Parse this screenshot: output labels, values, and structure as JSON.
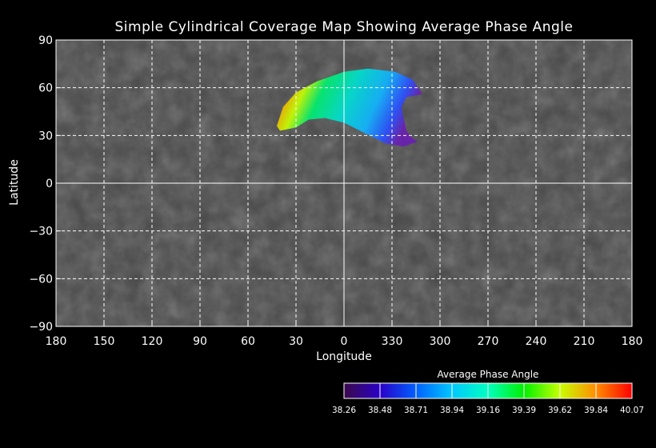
{
  "chart_data": {
    "type": "heatmap",
    "title": "Simple Cylindrical Coverage Map Showing Average Phase Angle",
    "xlabel": "Longitude",
    "ylabel": "Latitude",
    "x_tick_labels": [
      "180",
      "150",
      "120",
      "90",
      "60",
      "30",
      "0",
      "330",
      "300",
      "270",
      "240",
      "210",
      "180"
    ],
    "y_tick_labels": [
      "90",
      "60",
      "30",
      "0",
      "−30",
      "−60",
      "−90"
    ],
    "x_range_east_longitude": [
      180,
      540
    ],
    "y_range_latitude": [
      -90,
      90
    ],
    "grid": true,
    "coverage_polygon_east_longitude_latitude": [
      [
        318,
        36
      ],
      [
        322,
        48
      ],
      [
        330,
        57
      ],
      [
        343,
        64
      ],
      [
        360,
        70
      ],
      [
        375,
        72
      ],
      [
        392,
        70
      ],
      [
        403,
        65
      ],
      [
        409,
        56
      ],
      [
        399,
        54
      ],
      [
        396,
        48
      ],
      [
        397,
        42
      ],
      [
        398,
        38
      ],
      [
        399,
        33
      ],
      [
        402,
        29
      ],
      [
        406,
        26
      ],
      [
        397,
        23
      ],
      [
        386,
        25
      ],
      [
        372,
        32
      ],
      [
        360,
        38
      ],
      [
        348,
        41
      ],
      [
        338,
        40
      ],
      [
        330,
        35
      ],
      [
        320,
        33
      ]
    ],
    "colorbar": {
      "label": "Average Phase Angle",
      "ticks": [
        "38.26",
        "38.48",
        "38.71",
        "38.94",
        "39.16",
        "39.39",
        "39.62",
        "39.84",
        "40.07"
      ],
      "range": [
        38.26,
        40.07
      ],
      "colors": [
        "#3c0a4a",
        "#2a00c8",
        "#0060ff",
        "#00c8ff",
        "#00ffc0",
        "#00f000",
        "#c8ff00",
        "#ff8c00",
        "#ff0000"
      ]
    },
    "background": "grayscale basemap"
  }
}
